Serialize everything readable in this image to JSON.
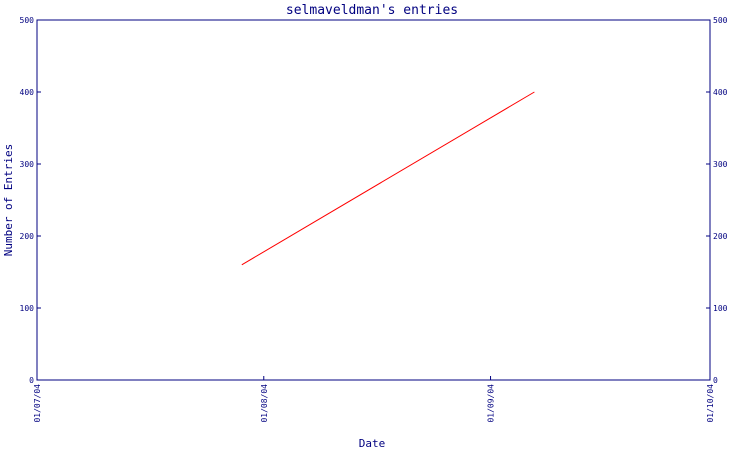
{
  "chart_data": {
    "type": "line",
    "title": "selmaveldman's entries",
    "xlabel": "Date",
    "ylabel": "Number of Entries",
    "xlim": [
      "2004-07-01",
      "2004-10-01"
    ],
    "ylim": [
      0,
      500
    ],
    "x_ticks": [
      "01/07/04",
      "01/08/04",
      "01/09/04",
      "01/10/04"
    ],
    "y_ticks": [
      0,
      100,
      200,
      300,
      400,
      500
    ],
    "series": [
      {
        "color": "#ff0000",
        "points": [
          {
            "x": "2004-07-29",
            "y": 160
          },
          {
            "x": "2004-09-07",
            "y": 400
          }
        ]
      }
    ],
    "grid": false,
    "right_axis_mirrors_left": true
  },
  "colors": {
    "axis": "#000080",
    "line": "#ff0000",
    "background": "#ffffff"
  }
}
